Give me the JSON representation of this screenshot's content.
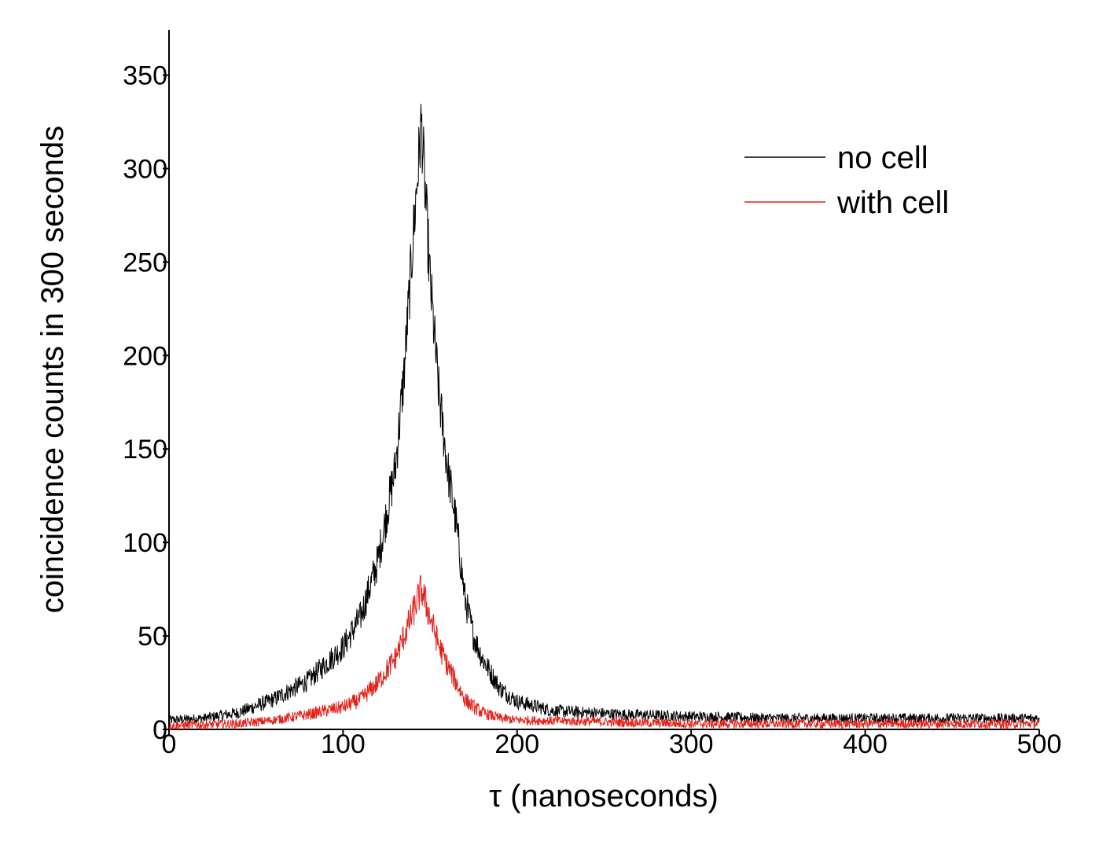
{
  "chart_data": {
    "type": "line",
    "title": "",
    "xlabel": "τ (nanoseconds)",
    "ylabel": "coincidence counts in 300 seconds",
    "xlim": [
      0,
      500
    ],
    "ylim": [
      0,
      370
    ],
    "x_ticks": [
      "0",
      "100",
      "200",
      "300",
      "400",
      "500"
    ],
    "y_ticks": [
      "0",
      "50",
      "100",
      "150",
      "200",
      "250",
      "300",
      "350"
    ],
    "grid": false,
    "legend_position": "top-right",
    "series": [
      {
        "name": "no cell",
        "color": "#000000",
        "points": [
          [
            0,
            5
          ],
          [
            20,
            6
          ],
          [
            40,
            9
          ],
          [
            60,
            16
          ],
          [
            80,
            26
          ],
          [
            100,
            44
          ],
          [
            110,
            60
          ],
          [
            120,
            90
          ],
          [
            130,
            140
          ],
          [
            135,
            190
          ],
          [
            140,
            260
          ],
          [
            145,
            325
          ],
          [
            150,
            240
          ],
          [
            155,
            180
          ],
          [
            160,
            140
          ],
          [
            165,
            110
          ],
          [
            170,
            70
          ],
          [
            175,
            50
          ],
          [
            180,
            38
          ],
          [
            190,
            22
          ],
          [
            200,
            15
          ],
          [
            220,
            10
          ],
          [
            240,
            9
          ],
          [
            260,
            8
          ],
          [
            300,
            7
          ],
          [
            350,
            6
          ],
          [
            400,
            6
          ],
          [
            450,
            6
          ],
          [
            500,
            6
          ]
        ]
      },
      {
        "name": "with cell",
        "color": "#e32119",
        "points": [
          [
            0,
            2
          ],
          [
            40,
            3
          ],
          [
            60,
            5
          ],
          [
            80,
            8
          ],
          [
            100,
            12
          ],
          [
            110,
            16
          ],
          [
            120,
            25
          ],
          [
            130,
            38
          ],
          [
            135,
            50
          ],
          [
            140,
            62
          ],
          [
            145,
            75
          ],
          [
            150,
            60
          ],
          [
            155,
            45
          ],
          [
            160,
            34
          ],
          [
            165,
            25
          ],
          [
            170,
            16
          ],
          [
            175,
            12
          ],
          [
            180,
            9
          ],
          [
            190,
            6
          ],
          [
            200,
            5
          ],
          [
            250,
            4
          ],
          [
            300,
            3
          ],
          [
            350,
            3
          ],
          [
            400,
            3
          ],
          [
            450,
            3
          ],
          [
            500,
            3
          ]
        ]
      }
    ]
  }
}
